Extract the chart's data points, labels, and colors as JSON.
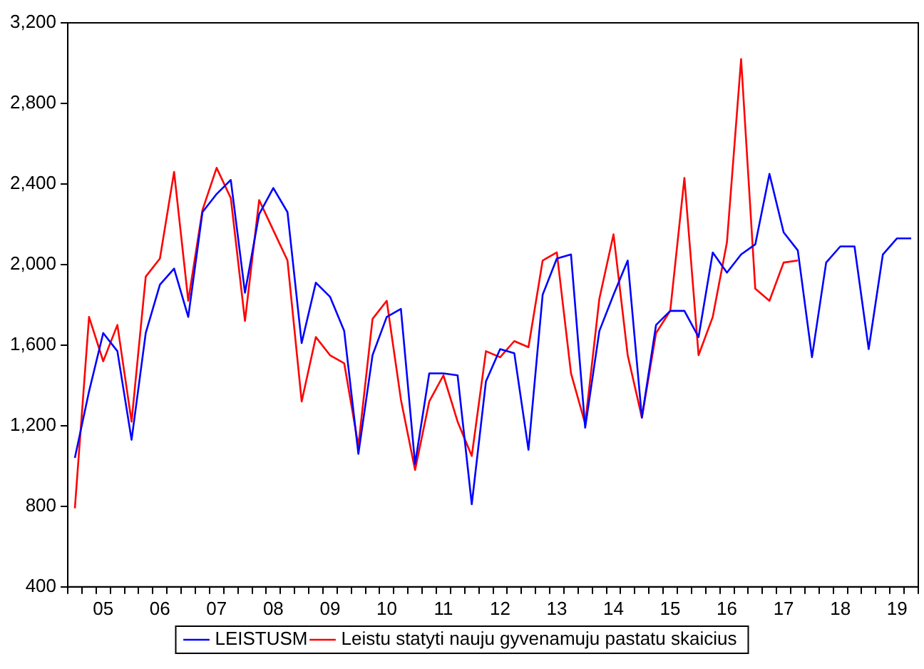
{
  "chart_data": {
    "type": "line",
    "categories": [
      null,
      null,
      "05",
      null,
      null,
      null,
      "06",
      null,
      null,
      null,
      "07",
      null,
      null,
      null,
      "08",
      null,
      null,
      null,
      "09",
      null,
      null,
      null,
      "10",
      null,
      null,
      null,
      "11",
      null,
      null,
      null,
      "12",
      null,
      null,
      null,
      "13",
      null,
      null,
      null,
      "14",
      null,
      null,
      null,
      "15",
      null,
      null,
      null,
      "16",
      null,
      null,
      null,
      "17",
      null,
      null,
      null,
      "18",
      null,
      null,
      null,
      "19",
      null
    ],
    "series": [
      {
        "name": "LEISTUSM",
        "color": "#0000ff",
        "values": [
          1040,
          1370,
          1660,
          1570,
          1130,
          1660,
          1900,
          1980,
          1740,
          2260,
          2350,
          2420,
          1860,
          2250,
          2380,
          2260,
          1610,
          1910,
          1840,
          1670,
          1060,
          1550,
          1740,
          1780,
          1010,
          1460,
          1460,
          1450,
          810,
          1420,
          1580,
          1560,
          1080,
          1850,
          2030,
          2050,
          1190,
          1670,
          1850,
          2020,
          1240,
          1700,
          1770,
          1770,
          1640,
          2060,
          1960,
          2050,
          2100,
          2450,
          2160,
          2070,
          1540,
          2010,
          2090,
          2090,
          1580,
          2050,
          2130,
          2130
        ]
      },
      {
        "name": "Leistu statyti nauju gyvenamuju pastatu skaicius",
        "color": "#ff0000",
        "values": [
          790,
          1740,
          1520,
          1700,
          1220,
          1940,
          2030,
          2460,
          1820,
          2270,
          2480,
          2330,
          1720,
          2320,
          2170,
          2020,
          1320,
          1640,
          1550,
          1510,
          1100,
          1730,
          1820,
          1330,
          980,
          1320,
          1450,
          1220,
          1050,
          1570,
          1540,
          1620,
          1590,
          2020,
          2060,
          1460,
          1210,
          1830,
          2150,
          1550,
          1240,
          1660,
          1770,
          2430,
          1550,
          1740,
          2110,
          3020,
          1880,
          1820,
          2010,
          2020,
          null,
          null,
          null,
          null,
          null,
          null,
          null,
          null
        ]
      }
    ],
    "ylim": [
      400,
      3200
    ],
    "yticks": [
      {
        "value": 400,
        "label": "400"
      },
      {
        "value": 800,
        "label": "800"
      },
      {
        "value": 1200,
        "label": "1,200"
      },
      {
        "value": 1600,
        "label": "1,600"
      },
      {
        "value": 2000,
        "label": "2,000"
      },
      {
        "value": 2400,
        "label": "2,400"
      },
      {
        "value": 2800,
        "label": "2,800"
      },
      {
        "value": 3200,
        "label": "3,200"
      }
    ],
    "grid": false,
    "legend": "bottom",
    "marker": "none",
    "line_style": "solid"
  }
}
